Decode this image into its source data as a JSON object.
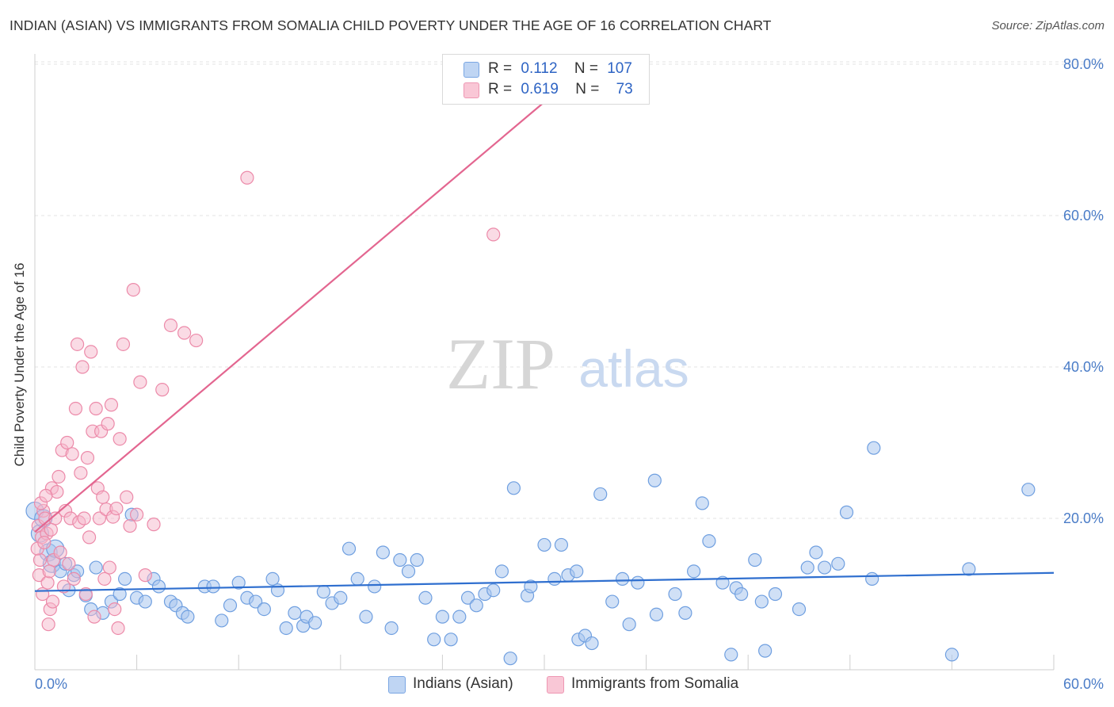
{
  "title": "INDIAN (ASIAN) VS IMMIGRANTS FROM SOMALIA CHILD POVERTY UNDER THE AGE OF 16 CORRELATION CHART",
  "source": "Source: ZipAtlas.com",
  "watermark": {
    "zip": "ZIP",
    "atlas": "atlas"
  },
  "colors": {
    "blue_fill": "#aac6ee",
    "blue_stroke": "#6f9fe0",
    "blue_line": "#2f6fcf",
    "pink_fill": "#f5b8cb",
    "pink_stroke": "#ec8aa9",
    "pink_line": "#e36690",
    "tick_text": "#4a7cc7",
    "grid": "#e3e3e3"
  },
  "legend": {
    "rows": [
      {
        "r_label": "R =",
        "r_value": "0.112",
        "n_label": "N =",
        "n_value": "107"
      },
      {
        "r_label": "R =",
        "r_value": "0.619",
        "n_label": "N =",
        "n_value": "73"
      }
    ]
  },
  "chart_data": {
    "type": "scatter",
    "title": "INDIAN (ASIAN) VS IMMIGRANTS FROM SOMALIA CHILD POVERTY UNDER THE AGE OF 16 CORRELATION CHART",
    "xlabel": "",
    "ylabel": "Child Poverty Under the Age of 16",
    "xlim": [
      0,
      60
    ],
    "ylim": [
      0,
      80
    ],
    "x_tick_labels": [
      "0.0%",
      "60.0%"
    ],
    "y_ticks": [
      20,
      40,
      60,
      80
    ],
    "y_tick_labels": [
      "20.0%",
      "40.0%",
      "60.0%",
      "80.0%"
    ],
    "grid": true,
    "legend_position": "top-center",
    "series": [
      {
        "name": "Indians (Asian)",
        "color": "#aac6ee",
        "trend": {
          "x": [
            0,
            60
          ],
          "y": [
            10.4,
            12.8
          ]
        },
        "points": [
          [
            0,
            21
          ],
          [
            0.3,
            18
          ],
          [
            0.5,
            20
          ],
          [
            0.8,
            15.5
          ],
          [
            1,
            14
          ],
          [
            1.2,
            16
          ],
          [
            1.5,
            13
          ],
          [
            1.8,
            14
          ],
          [
            2,
            10.5
          ],
          [
            2.3,
            12.5
          ],
          [
            2.5,
            13
          ],
          [
            3,
            9.8
          ],
          [
            3.3,
            8
          ],
          [
            3.6,
            13.5
          ],
          [
            4,
            7.5
          ],
          [
            4.5,
            9
          ],
          [
            5,
            10
          ],
          [
            5.3,
            12
          ],
          [
            5.7,
            20.5
          ],
          [
            6,
            9.5
          ],
          [
            6.5,
            9
          ],
          [
            7,
            12
          ],
          [
            7.3,
            11
          ],
          [
            8,
            9
          ],
          [
            8.3,
            8.5
          ],
          [
            8.7,
            7.5
          ],
          [
            9,
            7
          ],
          [
            10,
            11
          ],
          [
            10.5,
            11
          ],
          [
            11,
            6.5
          ],
          [
            11.5,
            8.5
          ],
          [
            12,
            11.5
          ],
          [
            12.5,
            9.5
          ],
          [
            13,
            9
          ],
          [
            13.5,
            8
          ],
          [
            14,
            12
          ],
          [
            14.3,
            10.5
          ],
          [
            14.8,
            5.5
          ],
          [
            15.3,
            7.5
          ],
          [
            15.8,
            5.8
          ],
          [
            16,
            7
          ],
          [
            16.5,
            6.2
          ],
          [
            17,
            10.3
          ],
          [
            17.5,
            8.8
          ],
          [
            18,
            9.5
          ],
          [
            18.5,
            16
          ],
          [
            19,
            12
          ],
          [
            19.5,
            7
          ],
          [
            20,
            11
          ],
          [
            20.5,
            15.5
          ],
          [
            21,
            5.5
          ],
          [
            21.5,
            14.5
          ],
          [
            22,
            13
          ],
          [
            22.5,
            14.5
          ],
          [
            23,
            9.5
          ],
          [
            23.5,
            4
          ],
          [
            24,
            7
          ],
          [
            24.5,
            4
          ],
          [
            25,
            7
          ],
          [
            25.5,
            9.5
          ],
          [
            26,
            8.5
          ],
          [
            26.5,
            10
          ],
          [
            27,
            10.5
          ],
          [
            27.5,
            13
          ],
          [
            28,
            1.5
          ],
          [
            28.2,
            24
          ],
          [
            29,
            9.8
          ],
          [
            29.2,
            11
          ],
          [
            30,
            16.5
          ],
          [
            30.6,
            12
          ],
          [
            31,
            16.5
          ],
          [
            31.4,
            12.5
          ],
          [
            31.9,
            13
          ],
          [
            32,
            4
          ],
          [
            32.4,
            4.5
          ],
          [
            32.8,
            3.5
          ],
          [
            33.3,
            23.2
          ],
          [
            34,
            9
          ],
          [
            34.6,
            12
          ],
          [
            35,
            6
          ],
          [
            35.5,
            11.5
          ],
          [
            36.5,
            25
          ],
          [
            36.6,
            7.3
          ],
          [
            37.7,
            10
          ],
          [
            38.3,
            7.5
          ],
          [
            38.8,
            13
          ],
          [
            39.3,
            22
          ],
          [
            39.7,
            17
          ],
          [
            40.5,
            11.5
          ],
          [
            41,
            2
          ],
          [
            41.3,
            10.8
          ],
          [
            41.6,
            10
          ],
          [
            42.4,
            14.5
          ],
          [
            42.8,
            9
          ],
          [
            43,
            2.5
          ],
          [
            43.6,
            10
          ],
          [
            45,
            8
          ],
          [
            45.5,
            13.5
          ],
          [
            46,
            15.5
          ],
          [
            46.5,
            13.5
          ],
          [
            47.3,
            14
          ],
          [
            47.8,
            20.8
          ],
          [
            49.3,
            12
          ],
          [
            49.4,
            29.3
          ],
          [
            54,
            2
          ],
          [
            55,
            13.3
          ],
          [
            58.5,
            23.8
          ]
        ]
      },
      {
        "name": "Immigrants from Somalia",
        "color": "#f5b8cb",
        "trend": {
          "x": [
            0,
            30
          ],
          "y": [
            18.2,
            75
          ]
        },
        "points": [
          [
            0.2,
            19
          ],
          [
            0.3,
            14.5
          ],
          [
            0.4,
            17.5
          ],
          [
            0.5,
            21
          ],
          [
            0.6,
            20
          ],
          [
            0.7,
            18
          ],
          [
            0.8,
            6
          ],
          [
            0.9,
            8
          ],
          [
            1,
            24
          ],
          [
            1.1,
            14.5
          ],
          [
            1.2,
            20
          ],
          [
            1.3,
            23.5
          ],
          [
            1.4,
            25.5
          ],
          [
            1.5,
            15.5
          ],
          [
            1.6,
            29
          ],
          [
            1.7,
            11
          ],
          [
            1.8,
            21
          ],
          [
            1.9,
            30
          ],
          [
            2,
            14
          ],
          [
            2.1,
            20
          ],
          [
            2.2,
            28.5
          ],
          [
            2.3,
            12
          ],
          [
            2.4,
            34.5
          ],
          [
            2.5,
            43
          ],
          [
            2.6,
            19.5
          ],
          [
            2.7,
            26
          ],
          [
            2.8,
            40
          ],
          [
            2.9,
            20
          ],
          [
            3,
            10
          ],
          [
            3.1,
            28
          ],
          [
            3.2,
            17.5
          ],
          [
            3.3,
            42
          ],
          [
            3.4,
            31.5
          ],
          [
            3.5,
            7
          ],
          [
            3.6,
            34.5
          ],
          [
            3.7,
            24
          ],
          [
            3.8,
            20
          ],
          [
            3.9,
            31.5
          ],
          [
            4,
            22.8
          ],
          [
            4.1,
            12
          ],
          [
            4.2,
            21.2
          ],
          [
            4.3,
            32.5
          ],
          [
            4.4,
            13.5
          ],
          [
            4.5,
            35
          ],
          [
            4.6,
            20.2
          ],
          [
            4.7,
            8
          ],
          [
            4.8,
            21.3
          ],
          [
            4.9,
            5.5
          ],
          [
            5,
            30.5
          ],
          [
            5.2,
            43
          ],
          [
            5.4,
            22.8
          ],
          [
            5.6,
            19
          ],
          [
            5.8,
            50.2
          ],
          [
            6,
            20.5
          ],
          [
            6.2,
            38
          ],
          [
            6.5,
            12.5
          ],
          [
            7,
            19.2
          ],
          [
            7.5,
            37
          ],
          [
            8,
            45.5
          ],
          [
            8.8,
            44.5
          ],
          [
            9.5,
            43.5
          ],
          [
            12.5,
            65
          ],
          [
            27,
            57.5
          ],
          [
            0.15,
            16
          ],
          [
            0.25,
            12.5
          ],
          [
            0.35,
            22
          ],
          [
            0.45,
            10
          ],
          [
            0.55,
            16.8
          ],
          [
            0.65,
            23
          ],
          [
            0.75,
            11.5
          ],
          [
            0.85,
            13
          ],
          [
            0.95,
            18.5
          ],
          [
            1.05,
            9
          ]
        ]
      }
    ]
  },
  "bottom_legend": [
    {
      "label": "Indians (Asian)"
    },
    {
      "label": "Immigrants from Somalia"
    }
  ]
}
